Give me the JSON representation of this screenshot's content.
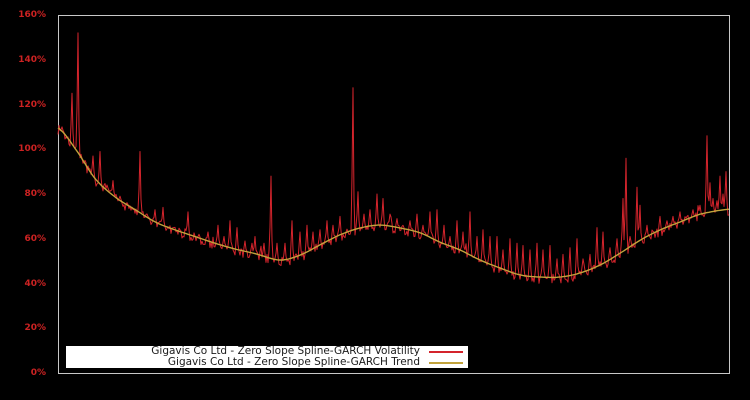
{
  "window": {
    "background": "#000000"
  },
  "colors": {
    "background": "#000000",
    "frame": "#c8c8c8",
    "axis_label": "#cc2222",
    "legend_background": "#ffffff",
    "legend_text": "#1a1a1a"
  },
  "chart_data": {
    "type": "line",
    "title": "",
    "xlabel": "",
    "ylabel": "",
    "ylim": [
      0,
      160
    ],
    "grid": false,
    "legend_position": "bottom-center",
    "y_axis": {
      "unit": "%",
      "ticks": [
        "0%",
        "20%",
        "40%",
        "60%",
        "80%",
        "100%",
        "120%",
        "140%",
        "160%"
      ],
      "tick_values": [
        0,
        20,
        40,
        60,
        80,
        100,
        120,
        140,
        160
      ]
    },
    "x_axis": {
      "labels_visible": false
    },
    "series": [
      {
        "name": "Gigavis Co Ltd - Zero Slope Spline-GARCH Volatility",
        "color": "#d4242c",
        "style": "noisy"
      },
      {
        "name": "Gigavis Co Ltd - Zero Slope Spline-GARCH Trend",
        "color": "#c2a33c",
        "style": "smooth"
      }
    ],
    "trend_points": [
      [
        0,
        109.5
      ],
      [
        0.025,
        100.5
      ],
      [
        0.055,
        87
      ],
      [
        0.085,
        78.7
      ],
      [
        0.115,
        73
      ],
      [
        0.145,
        67.5
      ],
      [
        0.174,
        64
      ],
      [
        0.204,
        61
      ],
      [
        0.234,
        58
      ],
      [
        0.264,
        55.4
      ],
      [
        0.294,
        53.3
      ],
      [
        0.331,
        50.5
      ],
      [
        0.361,
        52.7
      ],
      [
        0.39,
        57.2
      ],
      [
        0.42,
        61.7
      ],
      [
        0.45,
        64.8
      ],
      [
        0.48,
        66.1
      ],
      [
        0.51,
        64.8
      ],
      [
        0.54,
        62.6
      ],
      [
        0.569,
        58.5
      ],
      [
        0.599,
        55
      ],
      [
        0.629,
        50.5
      ],
      [
        0.659,
        46.9
      ],
      [
        0.689,
        43.8
      ],
      [
        0.718,
        42.9
      ],
      [
        0.748,
        42.9
      ],
      [
        0.778,
        44.7
      ],
      [
        0.808,
        48.3
      ],
      [
        0.838,
        53.6
      ],
      [
        0.868,
        59.4
      ],
      [
        0.897,
        63.9
      ],
      [
        0.927,
        67.5
      ],
      [
        0.957,
        71
      ],
      [
        1,
        73.2
      ]
    ],
    "volatility_spikes": [
      [
        0.006,
        110
      ],
      [
        0.013,
        105
      ],
      [
        0.021,
        125
      ],
      [
        0.03,
        152
      ],
      [
        0.04,
        95
      ],
      [
        0.052,
        97
      ],
      [
        0.063,
        99
      ],
      [
        0.073,
        84
      ],
      [
        0.082,
        86
      ],
      [
        0.092,
        79
      ],
      [
        0.103,
        76
      ],
      [
        0.112,
        73
      ],
      [
        0.122,
        99
      ],
      [
        0.134,
        70
      ],
      [
        0.145,
        73
      ],
      [
        0.157,
        74
      ],
      [
        0.171,
        65
      ],
      [
        0.182,
        64
      ],
      [
        0.194,
        72
      ],
      [
        0.21,
        62
      ],
      [
        0.224,
        63
      ],
      [
        0.238,
        66
      ],
      [
        0.247,
        61
      ],
      [
        0.256,
        68
      ],
      [
        0.267,
        65
      ],
      [
        0.279,
        59
      ],
      [
        0.289,
        58
      ],
      [
        0.294,
        61
      ],
      [
        0.307,
        58
      ],
      [
        0.317,
        88
      ],
      [
        0.326,
        58
      ],
      [
        0.338,
        58
      ],
      [
        0.349,
        68
      ],
      [
        0.361,
        63
      ],
      [
        0.371,
        66
      ],
      [
        0.38,
        63
      ],
      [
        0.39,
        64
      ],
      [
        0.401,
        68
      ],
      [
        0.41,
        66
      ],
      [
        0.42,
        70
      ],
      [
        0.431,
        63
      ],
      [
        0.44,
        127.5
      ],
      [
        0.447,
        81
      ],
      [
        0.456,
        71
      ],
      [
        0.465,
        73
      ],
      [
        0.475,
        80
      ],
      [
        0.484,
        78
      ],
      [
        0.495,
        71
      ],
      [
        0.505,
        69
      ],
      [
        0.514,
        66
      ],
      [
        0.525,
        68
      ],
      [
        0.535,
        71
      ],
      [
        0.544,
        66
      ],
      [
        0.554,
        72
      ],
      [
        0.565,
        73
      ],
      [
        0.575,
        66
      ],
      [
        0.584,
        61
      ],
      [
        0.595,
        68
      ],
      [
        0.604,
        63
      ],
      [
        0.614,
        72
      ],
      [
        0.624,
        61
      ],
      [
        0.633,
        64
      ],
      [
        0.644,
        61
      ],
      [
        0.654,
        61
      ],
      [
        0.663,
        55
      ],
      [
        0.674,
        60
      ],
      [
        0.684,
        58
      ],
      [
        0.693,
        57
      ],
      [
        0.703,
        55
      ],
      [
        0.714,
        58
      ],
      [
        0.723,
        55
      ],
      [
        0.733,
        57
      ],
      [
        0.744,
        51
      ],
      [
        0.753,
        53
      ],
      [
        0.763,
        56
      ],
      [
        0.773,
        60
      ],
      [
        0.782,
        51
      ],
      [
        0.793,
        53
      ],
      [
        0.803,
        65
      ],
      [
        0.812,
        63
      ],
      [
        0.823,
        56
      ],
      [
        0.833,
        60
      ],
      [
        0.842,
        78
      ],
      [
        0.847,
        96
      ],
      [
        0.852,
        61
      ],
      [
        0.863,
        83
      ],
      [
        0.867,
        75
      ],
      [
        0.878,
        66
      ],
      [
        0.887,
        63
      ],
      [
        0.897,
        70
      ],
      [
        0.908,
        68
      ],
      [
        0.917,
        70
      ],
      [
        0.927,
        72
      ],
      [
        0.937,
        70
      ],
      [
        0.946,
        73
      ],
      [
        0.957,
        75
      ],
      [
        0.967,
        106
      ],
      [
        0.972,
        85
      ],
      [
        0.976,
        78
      ],
      [
        0.982,
        77
      ],
      [
        0.987,
        88
      ],
      [
        0.991,
        80
      ],
      [
        0.996,
        90
      ]
    ],
    "volatility_noise_band_pct": 2.2
  }
}
